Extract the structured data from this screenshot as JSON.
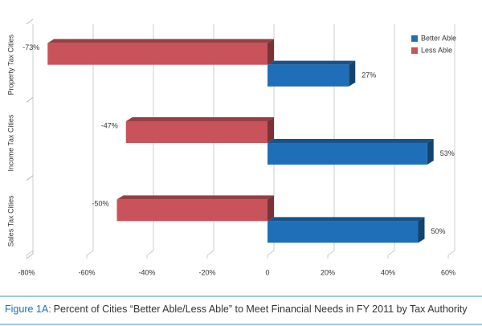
{
  "chart_data": {
    "type": "bar",
    "orientation": "horizontal",
    "figure_label": "Figure 1A:",
    "title": "Percent of Cities “Better Able/Less Able” to Meet Financial Needs in FY 2011 by Tax Authority",
    "categories": [
      "Property Tax Cities",
      "Income Tax Cities",
      "Sales Tax Cities"
    ],
    "series": [
      {
        "name": "Better Able",
        "color": "#1f6fb8",
        "values": [
          27,
          53,
          50
        ],
        "value_labels": [
          "27%",
          "53%",
          "50%"
        ]
      },
      {
        "name": "Less Able",
        "color": "#c9535a",
        "values": [
          -73,
          -47,
          -50
        ],
        "value_labels": [
          "-73%",
          "-47%",
          "-50%"
        ]
      }
    ],
    "xlim": [
      -80,
      60
    ],
    "xticks": [
      {
        "value": -80,
        "label": "-80%"
      },
      {
        "value": -60,
        "label": "-60%"
      },
      {
        "value": -40,
        "label": "-40%"
      },
      {
        "value": -20,
        "label": "-20%"
      },
      0,
      {
        "value": 20,
        "label": "20%"
      },
      {
        "value": 40,
        "label": "40%"
      },
      {
        "value": 60,
        "label": "60%"
      }
    ],
    "grid": true,
    "legend": "top-right"
  }
}
